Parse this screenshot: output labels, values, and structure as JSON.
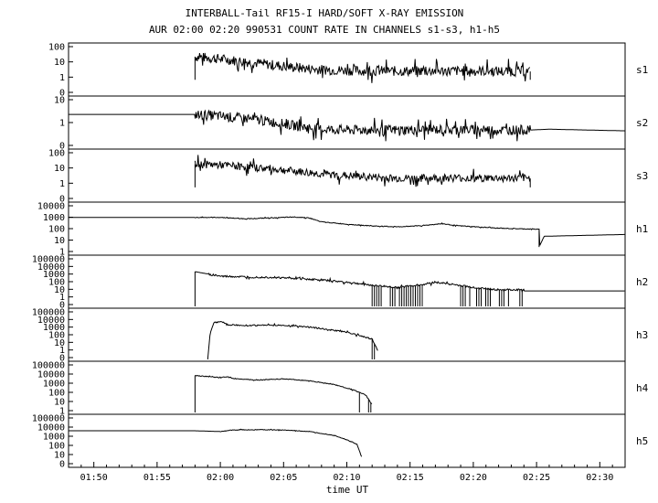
{
  "chart_data": {
    "type": "line",
    "title": "INTERBALL-Tail RF15-I HARD/SOFT X-RAY EMISSION",
    "subtitle": "AUR 02:00 02:20 990531  COUNT RATE IN CHANNELS s1-s3, h1-h5",
    "xlabel": "time UT",
    "x_range_minutes": [
      -12,
      32
    ],
    "x_ticks": [
      {
        "label": "01:50",
        "minute": -10
      },
      {
        "label": "01:55",
        "minute": -5
      },
      {
        "label": "02:00",
        "minute": 0
      },
      {
        "label": "02:05",
        "minute": 5
      },
      {
        "label": "02:10",
        "minute": 10
      },
      {
        "label": "02:15",
        "minute": 15
      },
      {
        "label": "02:20",
        "minute": 20
      },
      {
        "label": "02:25",
        "minute": 25
      },
      {
        "label": "02:30",
        "minute": 30
      }
    ],
    "y_scale": "log",
    "panels": [
      {
        "name": "s1",
        "yticks": [
          "100",
          "10",
          "1",
          "0"
        ],
        "ymax_decades": 2,
        "points": [
          [
            -2,
            0
          ],
          [
            -2,
            1.6
          ],
          [
            0,
            1.45
          ],
          [
            2,
            1.25
          ],
          [
            4,
            1.05
          ],
          [
            6,
            0.85
          ],
          [
            8,
            0.7
          ],
          [
            10,
            0.65
          ],
          [
            14,
            0.6
          ],
          [
            18,
            0.62
          ],
          [
            22,
            0.6
          ],
          [
            24.5,
            0.58
          ],
          [
            24.5,
            0
          ]
        ],
        "noise": 0.35,
        "noise_from": -2,
        "noise_to": 24.5
      },
      {
        "name": "s2",
        "yticks": [
          "10",
          "1",
          "0"
        ],
        "ymax_decades": 1.6,
        "points": [
          [
            -12,
            1.0
          ],
          [
            -2,
            1.0
          ],
          [
            0,
            0.9
          ],
          [
            2,
            0.75
          ],
          [
            4,
            0.55
          ],
          [
            6,
            0.3
          ],
          [
            8,
            0.1
          ],
          [
            10,
            0.05
          ],
          [
            14,
            0.05
          ],
          [
            18,
            0.08
          ],
          [
            22,
            0.05
          ],
          [
            24.5,
            0.05
          ],
          [
            26,
            0.1
          ],
          [
            32,
            0.0
          ]
        ],
        "noise": 0.3,
        "noise_from": -2,
        "noise_to": 24.5
      },
      {
        "name": "s3",
        "yticks": [
          "100",
          "10",
          "1",
          "0"
        ],
        "ymax_decades": 2.4,
        "points": [
          [
            -2,
            0
          ],
          [
            -2,
            1.8
          ],
          [
            0,
            1.75
          ],
          [
            2,
            1.6
          ],
          [
            4,
            1.45
          ],
          [
            6,
            1.25
          ],
          [
            8,
            1.05
          ],
          [
            10,
            0.9
          ],
          [
            14,
            0.7
          ],
          [
            18,
            0.75
          ],
          [
            22,
            0.72
          ],
          [
            24.5,
            0.7
          ],
          [
            24.5,
            0
          ]
        ],
        "noise": 0.3,
        "noise_from": -2,
        "noise_to": 24.5
      },
      {
        "name": "h1",
        "yticks": [
          "10000",
          "1000",
          "100",
          "10",
          "1"
        ],
        "ymax_decades": 4,
        "points": [
          [
            -12,
            3.0
          ],
          [
            -2,
            3.0
          ],
          [
            0,
            3.0
          ],
          [
            2,
            2.85
          ],
          [
            4,
            2.95
          ],
          [
            6,
            3.05
          ],
          [
            7,
            2.95
          ],
          [
            8,
            2.5
          ],
          [
            10,
            2.25
          ],
          [
            12,
            2.05
          ],
          [
            14,
            1.95
          ],
          [
            16,
            2.1
          ],
          [
            17.5,
            2.3
          ],
          [
            19,
            2.05
          ],
          [
            22,
            1.8
          ],
          [
            24.5,
            1.7
          ],
          [
            25.2,
            1.7
          ],
          [
            25.2,
            -0.3
          ],
          [
            25.6,
            0.9
          ],
          [
            32,
            1.1
          ]
        ],
        "noise": 0.04,
        "noise_from": -2,
        "noise_to": 25
      },
      {
        "name": "h2",
        "yticks": [
          "100000",
          "10000",
          "1000",
          "100",
          "10",
          "1",
          "0"
        ],
        "ymax_decades": 5,
        "points": [
          [
            -2,
            -1
          ],
          [
            -2,
            3.6
          ],
          [
            -1,
            3.3
          ],
          [
            0,
            3.0
          ],
          [
            2,
            2.9
          ],
          [
            4,
            2.85
          ],
          [
            6,
            2.7
          ],
          [
            8,
            2.5
          ],
          [
            10,
            2.2
          ],
          [
            12,
            1.8
          ],
          [
            14,
            1.5
          ],
          [
            16,
            1.9
          ],
          [
            17,
            2.2
          ],
          [
            18,
            2.0
          ],
          [
            20,
            1.5
          ],
          [
            22,
            1.2
          ],
          [
            24,
            1.2
          ],
          [
            24,
            1.05
          ],
          [
            32,
            1.05
          ]
        ],
        "noise": 0.12,
        "noise_from": -1,
        "noise_to": 24,
        "spikes": [
          [
            12,
            16
          ],
          [
            19,
            24
          ]
        ]
      },
      {
        "name": "h3",
        "yticks": [
          "100000",
          "10000",
          "1000",
          "100",
          "10",
          "1",
          "0"
        ],
        "ymax_decades": 5,
        "points": [
          [
            -1,
            -1
          ],
          [
            -0.8,
            2.5
          ],
          [
            -0.5,
            3.9
          ],
          [
            0,
            4.0
          ],
          [
            0.5,
            3.6
          ],
          [
            2,
            3.5
          ],
          [
            4,
            3.55
          ],
          [
            6,
            3.45
          ],
          [
            8,
            3.1
          ],
          [
            10,
            2.6
          ],
          [
            12,
            1.7
          ],
          [
            12.5,
            0
          ]
        ],
        "noise": 0.08,
        "noise_from": -0.5,
        "noise_to": 12.5,
        "spikes": [
          [
            12,
            13
          ],
          [
            16,
            17.5
          ]
        ]
      },
      {
        "name": "h4",
        "yticks": [
          "100000",
          "10000",
          "1000",
          "100",
          "10",
          "1"
        ],
        "ymax_decades": 5,
        "points": [
          [
            -2,
            -1
          ],
          [
            -2,
            3.9
          ],
          [
            0,
            3.6
          ],
          [
            0.5,
            3.75
          ],
          [
            1,
            3.5
          ],
          [
            3,
            3.3
          ],
          [
            5,
            3.45
          ],
          [
            7,
            3.2
          ],
          [
            9,
            2.7
          ],
          [
            10.5,
            2.0
          ],
          [
            11.5,
            1.3
          ],
          [
            12,
            0
          ]
        ],
        "noise": 0.05,
        "noise_from": -2,
        "noise_to": 12,
        "spikes": [
          [
            11,
            12
          ]
        ]
      },
      {
        "name": "h5",
        "yticks": [
          "100000",
          "10000",
          "1000",
          "100",
          "10",
          "0"
        ],
        "ymax_decades": 5,
        "points": [
          [
            -12,
            3.6
          ],
          [
            -2,
            3.6
          ],
          [
            0,
            3.5
          ],
          [
            1,
            3.7
          ],
          [
            3,
            3.75
          ],
          [
            5,
            3.7
          ],
          [
            7,
            3.5
          ],
          [
            9,
            3.0
          ],
          [
            10,
            2.4
          ],
          [
            10.8,
            1.8
          ],
          [
            11.2,
            0
          ]
        ],
        "noise": 0.04,
        "noise_from": 0,
        "noise_to": 11.2
      }
    ]
  }
}
